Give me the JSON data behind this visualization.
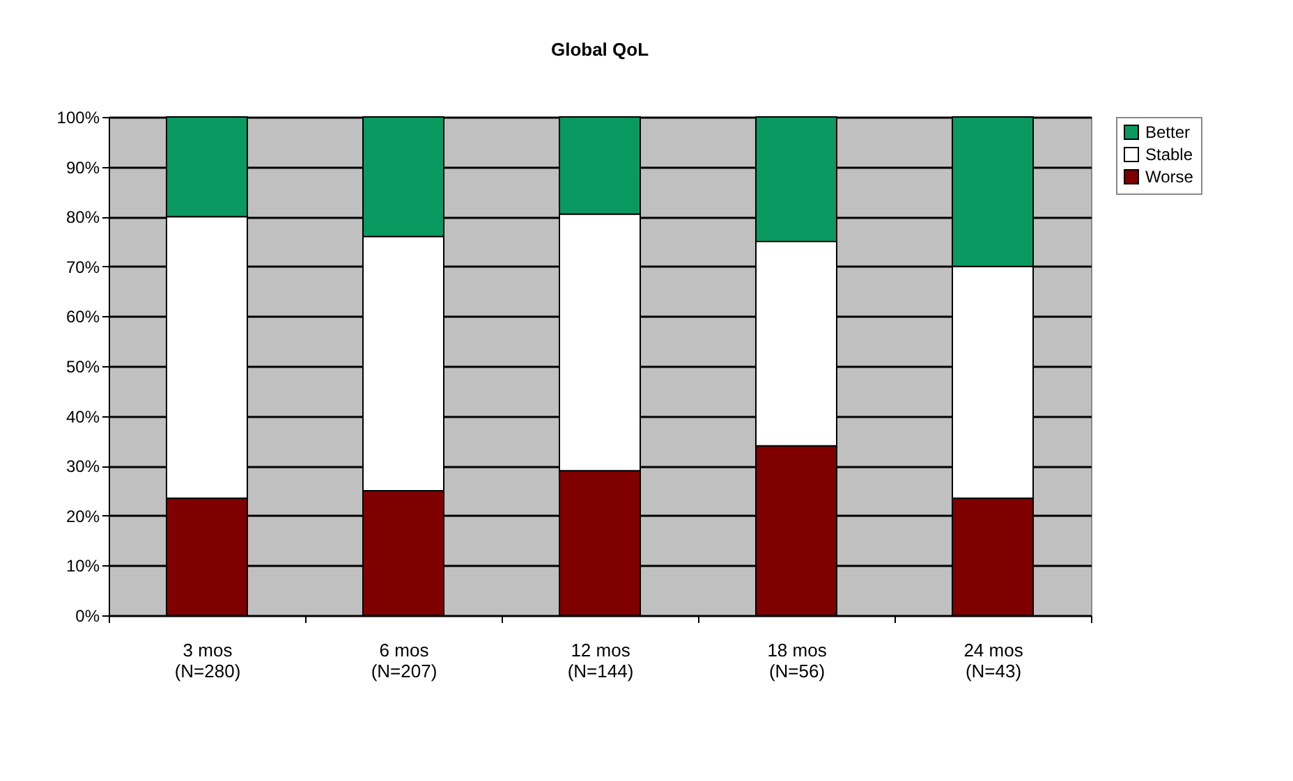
{
  "chart_data": {
    "type": "bar",
    "title": "Global QoL",
    "stacked": true,
    "categories": [
      "3 mos\n(N=280)",
      "6 mos\n(N=207)",
      "12 mos\n(N=144)",
      "18 mos\n(N=56)",
      "24 mos\n(N=43)"
    ],
    "series": [
      {
        "name": "Worse",
        "color": "#800000",
        "values": [
          23.5,
          25,
          29,
          34,
          23.5
        ]
      },
      {
        "name": "Stable",
        "color": "#ffffff",
        "values": [
          56.5,
          51,
          51.5,
          41,
          46.5
        ]
      },
      {
        "name": "Better",
        "color": "#0a9960",
        "values": [
          20,
          24,
          19.5,
          25,
          30
        ]
      }
    ],
    "ylim": [
      0,
      100
    ],
    "yticks": [
      {
        "value": 0,
        "label": "0%"
      },
      {
        "value": 10,
        "label": "10%"
      },
      {
        "value": 20,
        "label": "20%"
      },
      {
        "value": 30,
        "label": "30%"
      },
      {
        "value": 40,
        "label": "40%"
      },
      {
        "value": 50,
        "label": "50%"
      },
      {
        "value": 60,
        "label": "60%"
      },
      {
        "value": 70,
        "label": "70%"
      },
      {
        "value": 80,
        "label": "80%"
      },
      {
        "value": 90,
        "label": "90%"
      },
      {
        "value": 100,
        "label": "100%"
      }
    ],
    "grid": "y",
    "legend": "right"
  }
}
